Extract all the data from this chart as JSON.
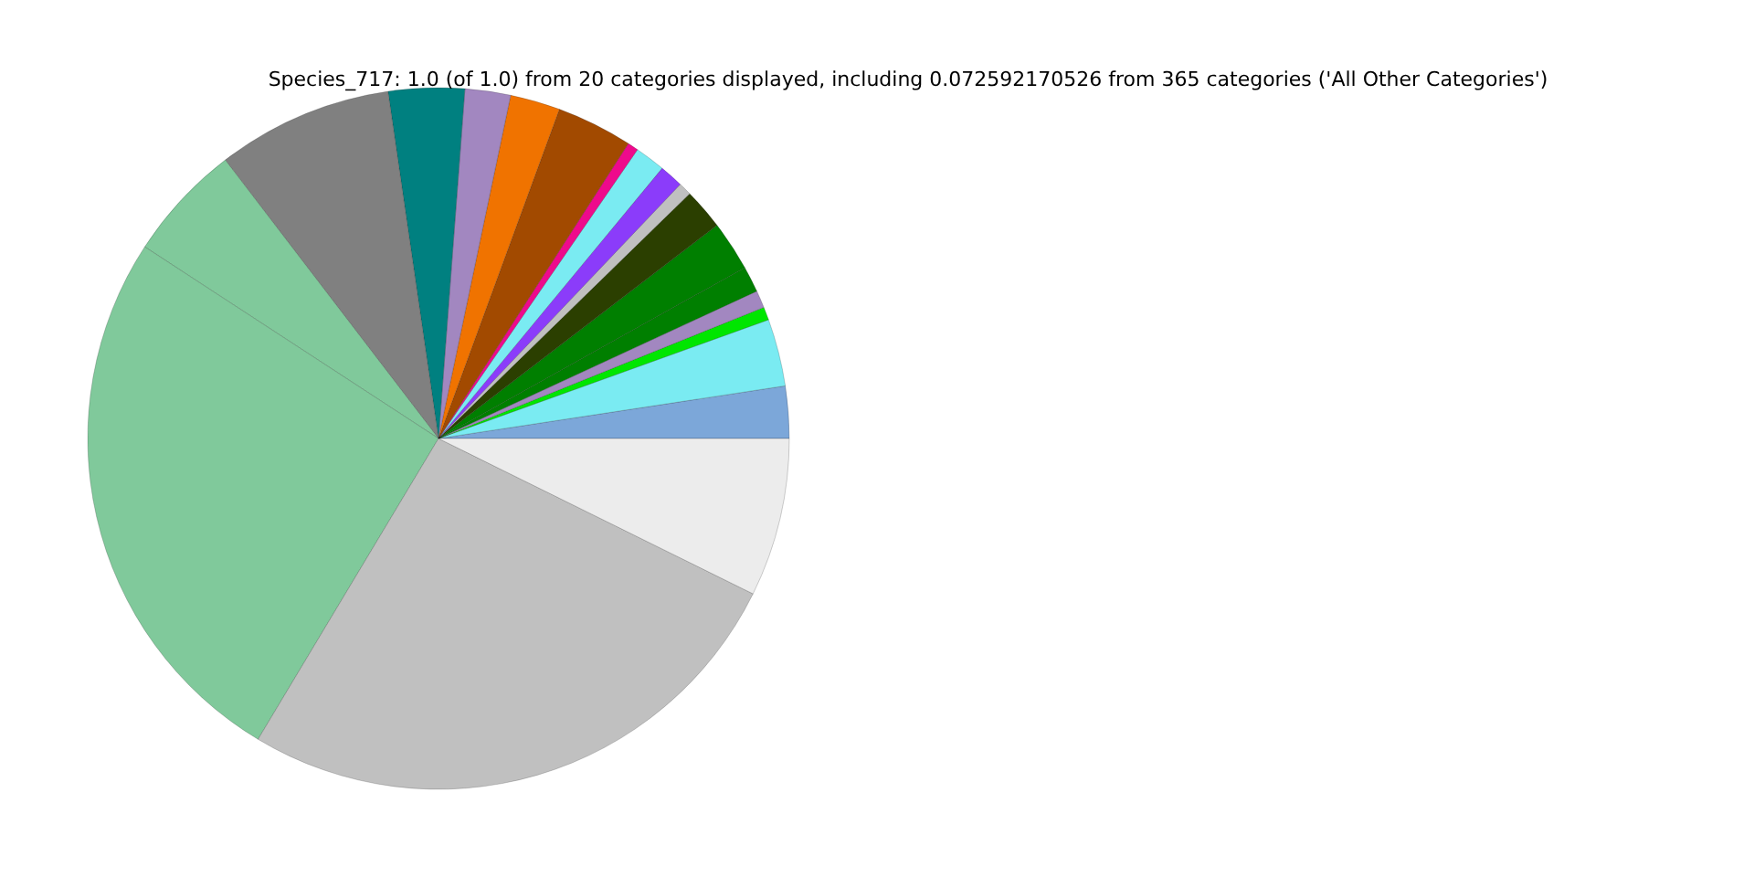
{
  "chart_data": {
    "type": "pie",
    "title": "Species_717: 1.0 (of 1.0) from 20 categories displayed, including 0.072592170526 from 365 categories ('All Other Categories')",
    "categories": [
      null,
      null,
      null,
      null,
      null,
      null,
      null,
      null,
      null,
      null,
      null,
      null,
      null,
      null,
      null,
      null,
      null,
      null,
      null,
      null
    ],
    "values": [
      2.4,
      3.1,
      0.6,
      0.8,
      1.2,
      2.3,
      1.9,
      0.6,
      1.1,
      1.4,
      0.5,
      3.5,
      2.3,
      2.1,
      3.5,
      8.1,
      5.4,
      25.6,
      26.3,
      7.3
    ],
    "colors": [
      "#7ca7d9",
      "#7aebf2",
      "#00e600",
      "#a287c0",
      "#007f00",
      "#007f00",
      "#2b3f00",
      "#c0c0c0",
      "#8b3cfa",
      "#7aebf2",
      "#ee0a8c",
      "#a24a00",
      "#f07300",
      "#a287c0",
      "#008080",
      "#808080",
      "#80c99b",
      "#80c99b",
      "#c0c0c0",
      "#ececec"
    ]
  }
}
